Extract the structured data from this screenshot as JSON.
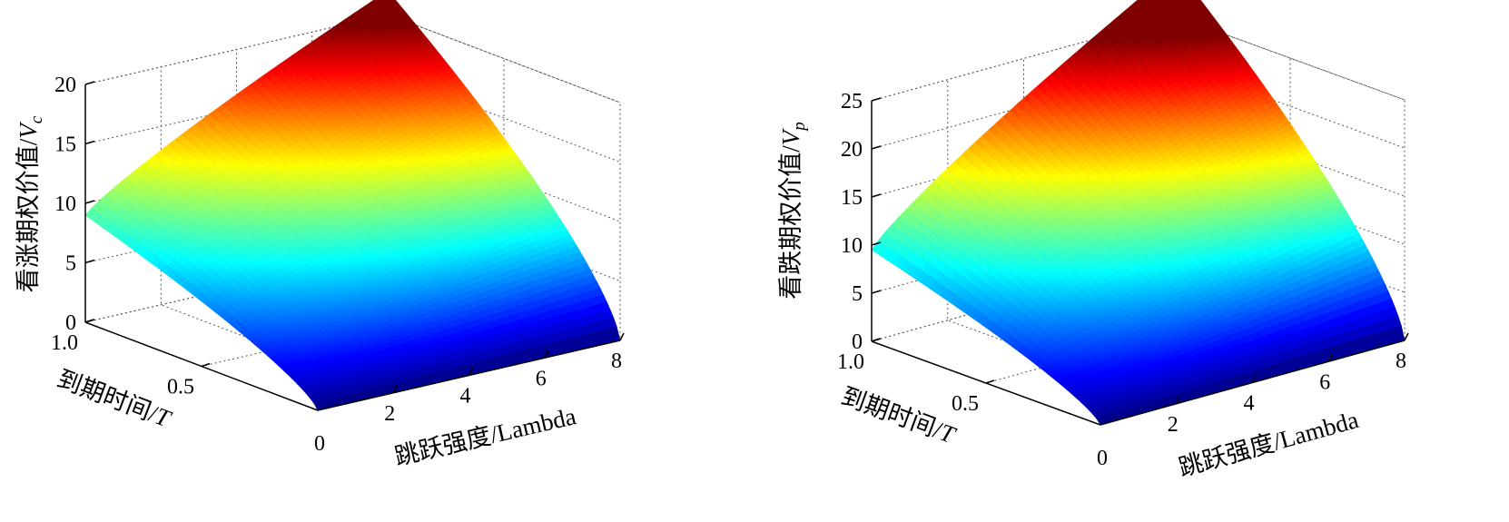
{
  "chart_data": [
    {
      "type": "surface",
      "panel": "left",
      "zlabel": "看涨期权价值/",
      "zlabel_symbol": "V",
      "zlabel_subscript": "c",
      "xlabel": "跳跃强度/Lambda",
      "ylabel": "到期时间/",
      "ylabel_symbol": "T",
      "x_ticks": [
        "2",
        "4",
        "6",
        "8"
      ],
      "x_zero": "0",
      "y_ticks": [
        "1.0",
        "0.5"
      ],
      "z_ticks": [
        "0",
        "5",
        "10",
        "15",
        "20"
      ],
      "xlim": [
        0,
        8
      ],
      "ylim": [
        0,
        1
      ],
      "zlim": [
        0,
        20
      ],
      "grid": true,
      "colormap": "jet",
      "corners": {
        "lambda_0_T_1": 9,
        "lambda_8_T_1": 22,
        "lambda_0_T_0": 0,
        "lambda_8_T_0": 0
      }
    },
    {
      "type": "surface",
      "panel": "right",
      "zlabel": "看跌期权价值/",
      "zlabel_symbol": "V",
      "zlabel_subscript": "p",
      "xlabel": "跳跃强度/Lambda",
      "ylabel": "到期时间/",
      "ylabel_symbol": "T",
      "x_ticks": [
        "2",
        "4",
        "6",
        "8"
      ],
      "x_zero": "0",
      "y_ticks": [
        "1.0",
        "0.5"
      ],
      "z_ticks": [
        "0",
        "5",
        "10",
        "15",
        "20",
        "25"
      ],
      "xlim": [
        0,
        8
      ],
      "ylim": [
        0,
        1
      ],
      "zlim": [
        0,
        25
      ],
      "grid": true,
      "colormap": "jet",
      "corners": {
        "lambda_0_T_1": 9.5,
        "lambda_8_T_1": 30,
        "lambda_0_T_0": 0,
        "lambda_8_T_0": 0
      }
    }
  ]
}
